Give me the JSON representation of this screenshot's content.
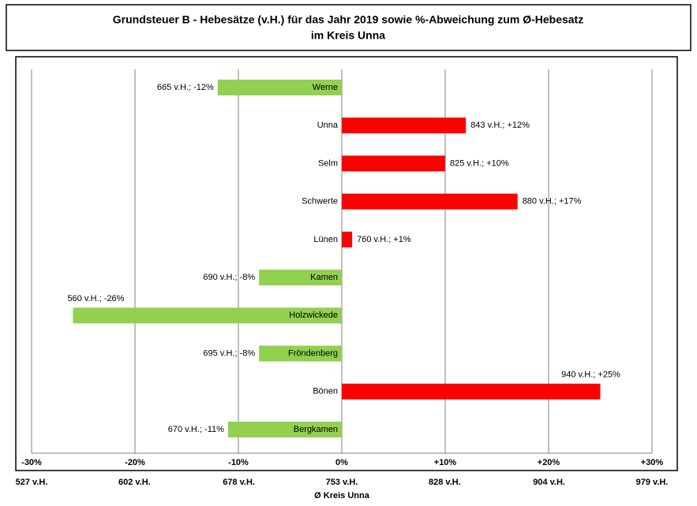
{
  "chart_data": {
    "type": "bar",
    "orientation": "horizontal",
    "title": [
      "Grundsteuer B - Hebesätze (v.H.) für das Jahr 2019 sowie %-Abweichung zum Ø-Hebesatz",
      "im Kreis Unna"
    ],
    "categories": [
      "Werne",
      "Unna",
      "Selm",
      "Schwerte",
      "Lünen",
      "Kamen",
      "Holzwickede",
      "Fröndenberg",
      "Bönen",
      "Bergkamen"
    ],
    "values": [
      -12,
      12,
      10,
      17,
      1,
      -8,
      -26,
      -8,
      25,
      -11
    ],
    "value_labels": [
      "665 v.H.; -12%",
      "843 v.H.; +12%",
      "825 v.H.; +10%",
      "880 v.H.; +17%",
      "760 v.H.; +1%",
      "690 v.H.; -8%",
      "560 v.H.; -26%",
      "695 v.H.; -8%",
      "940 v.H.; +25%",
      "670 v.H.; -11%"
    ],
    "positive_color": "#ff0000",
    "negative_color": "#92d050",
    "xlim": [
      -30,
      30
    ],
    "xticks": [
      {
        "value": -30,
        "label": "-30%"
      },
      {
        "value": -20,
        "label": "-20%"
      },
      {
        "value": -10,
        "label": "-10%"
      },
      {
        "value": 0,
        "label": "0%"
      },
      {
        "value": 10,
        "label": "+10%"
      },
      {
        "value": 20,
        "label": "+20%"
      },
      {
        "value": 30,
        "label": "+30%"
      }
    ],
    "x2lim": [
      527,
      979
    ],
    "x2ticks": [
      {
        "value": 527,
        "label": "527 v.H."
      },
      {
        "value": 602,
        "label": "602 v.H."
      },
      {
        "value": 678,
        "label": "678 v.H."
      },
      {
        "value": 753,
        "label": "753 v.H."
      },
      {
        "value": 828,
        "label": "828 v.H."
      },
      {
        "value": 904,
        "label": "904 v.H."
      },
      {
        "value": 979,
        "label": "979 v.H."
      }
    ],
    "x2label": "Ø Kreis Unna",
    "grid": true
  }
}
